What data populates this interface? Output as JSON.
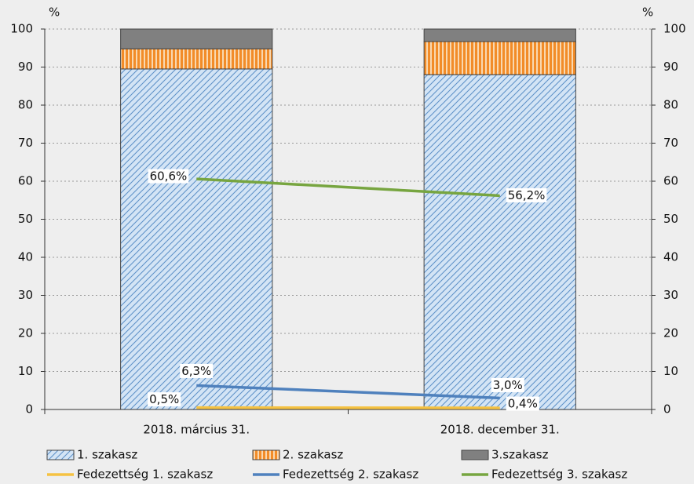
{
  "chart_data": {
    "type": "bar",
    "stacked": true,
    "y_label": "%",
    "y2_label": "%",
    "categories": [
      "2018. március 31.",
      "2018. december 31."
    ],
    "series": [
      {
        "name": "1. szakasz",
        "type": "bar",
        "color": "#5b8fc7",
        "values": [
          89.5,
          88
        ]
      },
      {
        "name": "2. szakasz",
        "type": "bar",
        "color": "#f28c28",
        "values": [
          5.3,
          8.7
        ]
      },
      {
        "name": "3.szakasz",
        "type": "bar",
        "color": "#808080",
        "values": [
          5.2,
          3.3
        ]
      },
      {
        "name": "Fedezettség 1. szakasz",
        "type": "line",
        "color": "#f5c242",
        "values": [
          0.5,
          0.4
        ],
        "value_labels": [
          "0,5%",
          "0,4%"
        ]
      },
      {
        "name": "Fedezettség 2. szakasz",
        "type": "line",
        "color": "#4f81bd",
        "values": [
          6.3,
          3.0
        ],
        "value_labels": [
          "6,3%",
          "3,0%"
        ]
      },
      {
        "name": "Fedezettség 3. szakasz",
        "type": "line",
        "color": "#77a540",
        "values": [
          60.6,
          56.2
        ],
        "value_labels": [
          "60,6%",
          "56,2%"
        ]
      }
    ],
    "ylim": [
      0,
      100
    ],
    "yticks": [
      0,
      10,
      20,
      30,
      40,
      50,
      60,
      70,
      80,
      90,
      100
    ],
    "y2lim": [
      0,
      100
    ],
    "y2ticks": [
      0,
      10,
      20,
      30,
      40,
      50,
      60,
      70,
      80,
      90,
      100
    ],
    "grid": true
  }
}
